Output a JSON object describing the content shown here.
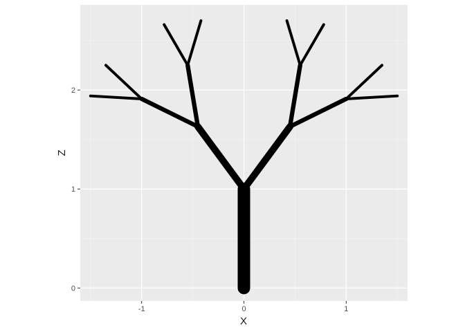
{
  "chart_data": {
    "type": "line",
    "xlabel": "X",
    "ylabel": "Z",
    "xlim": [
      -1.6,
      1.6
    ],
    "ylim": [
      -0.13,
      2.86
    ],
    "x_ticks": [
      -1,
      0,
      1
    ],
    "x_tick_labels": [
      "-1",
      "0",
      "1"
    ],
    "y_ticks": [
      0,
      1,
      2
    ],
    "y_tick_labels": [
      "0",
      "1",
      "2"
    ],
    "grid": true,
    "background": "#ebebeb",
    "line_color": "#000000",
    "series": [
      {
        "x": [
          0.0,
          0.0
        ],
        "y": [
          0.0,
          1.0
        ],
        "width": 1.0
      },
      {
        "x": [
          0.0,
          -0.45
        ],
        "y": [
          1.0,
          1.63
        ],
        "width": 0.55
      },
      {
        "x": [
          0.0,
          0.45
        ],
        "y": [
          1.0,
          1.63
        ],
        "width": 0.55
      },
      {
        "x": [
          -0.45,
          -0.55
        ],
        "y": [
          1.63,
          2.25
        ],
        "width": 0.35
      },
      {
        "x": [
          -0.45,
          -1.0
        ],
        "y": [
          1.63,
          1.91
        ],
        "width": 0.35
      },
      {
        "x": [
          0.45,
          0.55
        ],
        "y": [
          1.63,
          2.25
        ],
        "width": 0.35
      },
      {
        "x": [
          0.45,
          1.0
        ],
        "y": [
          1.63,
          1.91
        ],
        "width": 0.35
      },
      {
        "x": [
          -0.55,
          -0.78
        ],
        "y": [
          2.25,
          2.66
        ],
        "width": 0.22
      },
      {
        "x": [
          -0.55,
          -0.42
        ],
        "y": [
          2.25,
          2.7
        ],
        "width": 0.22
      },
      {
        "x": [
          0.55,
          0.78
        ],
        "y": [
          2.25,
          2.66
        ],
        "width": 0.22
      },
      {
        "x": [
          0.55,
          0.42
        ],
        "y": [
          2.25,
          2.7
        ],
        "width": 0.22
      },
      {
        "x": [
          -1.0,
          -1.35
        ],
        "y": [
          1.91,
          2.25
        ],
        "width": 0.22
      },
      {
        "x": [
          -1.0,
          -1.5
        ],
        "y": [
          1.91,
          1.94
        ],
        "width": 0.22
      },
      {
        "x": [
          1.0,
          1.35
        ],
        "y": [
          1.91,
          2.25
        ],
        "width": 0.22
      },
      {
        "x": [
          1.0,
          1.5
        ],
        "y": [
          1.91,
          1.94
        ],
        "width": 0.22
      }
    ]
  }
}
